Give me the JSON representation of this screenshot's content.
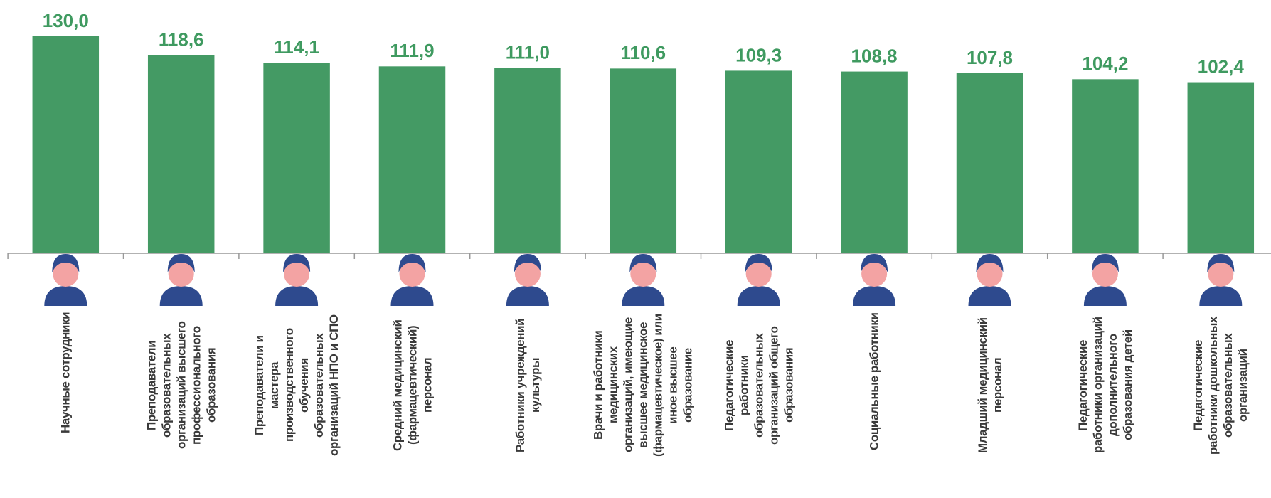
{
  "chart_data": {
    "type": "bar",
    "categories": [
      "Научные сотрудники",
      "Преподаватели образовательных организаций высшего профессионального образования",
      "Преподаватели и мастера производственного обучения образовательных организаций НПО и СПО",
      "Средний медицинский (фармацевтический) персонал",
      "Работники учреждений культуры",
      "Врачи и работники медицинских организаций, имеющие высшее медицинское (фармацевтическое) или иное высшее образование",
      "Педагогические работники образовательных организаций общего образования",
      "Социальные работники",
      "Младший медицинский персонал",
      "Педагогические работники организаций дополнительного образования детей",
      "Педагогические работники дошкольных образовательных организаций"
    ],
    "values": [
      130.0,
      118.6,
      114.1,
      111.9,
      111.0,
      110.6,
      109.3,
      108.8,
      107.8,
      104.2,
      102.4
    ],
    "value_labels": [
      "130,0",
      "118,6",
      "114,1",
      "111,9",
      "111,0",
      "110,6",
      "109,3",
      "108,8",
      "107,8",
      "104,2",
      "102,4"
    ],
    "color": "#449a64",
    "label_color": "#3f9a60",
    "ylim": [
      0,
      130
    ]
  }
}
